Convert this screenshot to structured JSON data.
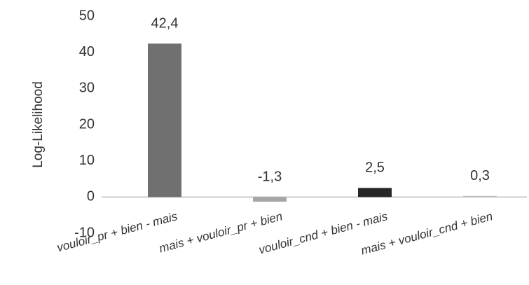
{
  "chart_data": {
    "type": "bar",
    "y_label": "Log-Likelihood",
    "categories": [
      "vouloir_pr + bien - mais",
      "mais + vouloir_pr + bien",
      "vouloir_cnd + bien - mais",
      "mais + vouloir_cnd + bien"
    ],
    "values": [
      42.4,
      -1.3,
      2.5,
      0.3
    ],
    "value_labels": [
      "42,4",
      "-1,3",
      "2,5",
      "0,3"
    ],
    "colors": [
      "#707070",
      "#a6a6a6",
      "#262626",
      "#bfbfbf"
    ],
    "ylim": [
      -10,
      50
    ],
    "yticks": [
      -10,
      0,
      10,
      20,
      30,
      40,
      50
    ],
    "grid": false
  }
}
